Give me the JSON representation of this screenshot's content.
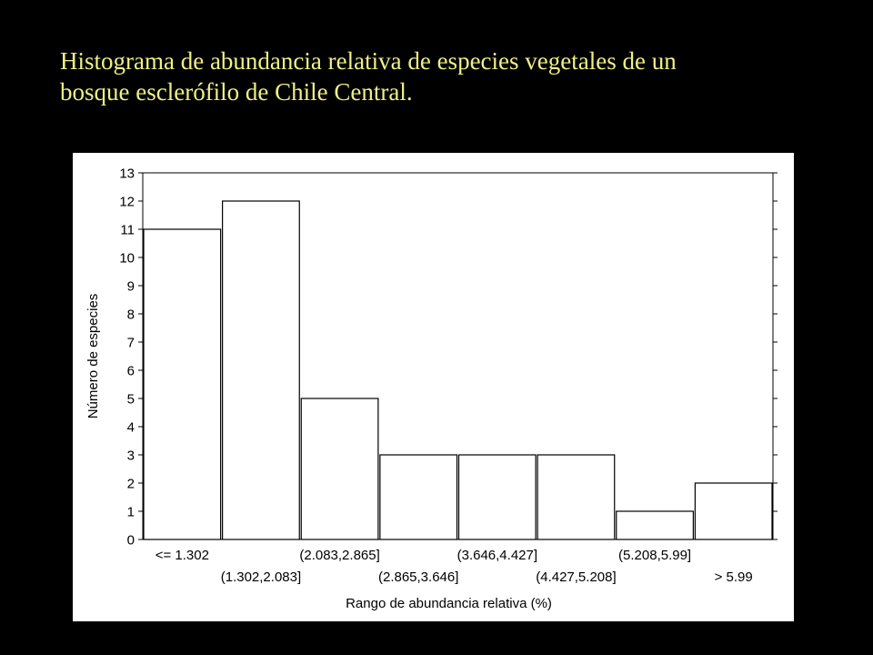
{
  "slide": {
    "title_line1": "Histograma de abundancia relativa de especies vegetales de un",
    "title_line2": "bosque esclerófilo de Chile Central."
  },
  "colors": {
    "background": "#000000",
    "title": "#f0f088",
    "panel": "#ffffff",
    "bar_fill": "#ffffff",
    "bar_stroke": "#000000"
  },
  "chart_data": {
    "type": "bar",
    "title": "",
    "xlabel": "Rango de abundancia relativa (%)",
    "ylabel": "Número de especies",
    "categories": [
      "<= 1.302",
      "(1.302,2.083]",
      "(2.083,2.865]",
      "(2.865,3.646]",
      "(3.646,4.427]",
      "(4.427,5.208]",
      "(5.208,5.99]",
      "> 5.99"
    ],
    "values": [
      11,
      12,
      5,
      3,
      3,
      3,
      1,
      2
    ],
    "ylim": [
      0,
      13
    ],
    "yticks": [
      0,
      1,
      2,
      3,
      4,
      5,
      6,
      7,
      8,
      9,
      10,
      11,
      12,
      13
    ],
    "grid": false,
    "legend": "none",
    "tick_label_rows": "alternating"
  }
}
